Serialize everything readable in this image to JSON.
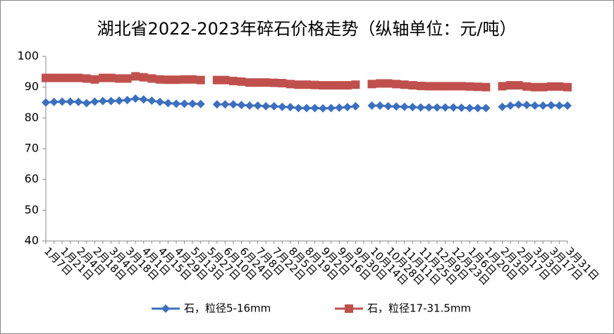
{
  "chart_data": {
    "type": "line",
    "title": "湖北省2022-2023年碎石价格走势（纵轴单位：元/吨）",
    "categories": [
      "1月7日",
      null,
      "1月21日",
      null,
      "2月4日",
      null,
      "2月18日",
      null,
      "3月4日",
      null,
      "3月18日",
      null,
      "4月1日",
      null,
      "4月15日",
      null,
      "4月29日",
      null,
      "5月13日",
      null,
      "5月27日",
      null,
      "6月10日",
      null,
      "6月24日",
      null,
      "7月8日",
      null,
      "7月22日",
      null,
      "8月5日",
      null,
      "8月19日",
      null,
      "9月2日",
      null,
      "9月16日",
      null,
      "9月30日",
      null,
      "10月14日",
      null,
      "10月28日",
      null,
      "11月11日",
      null,
      "11月25日",
      null,
      "12月9日",
      null,
      "12月23日",
      null,
      "1月6日",
      null,
      "1月20日",
      null,
      "2月3日",
      null,
      "2月17日",
      null,
      "3月3日",
      null,
      "3月17日",
      null,
      "3月31日"
    ],
    "series": [
      {
        "name": "石，粒径5-16mm",
        "color": "#3c6fbe",
        "marker": "diamond",
        "values": [
          85,
          85.2,
          85.3,
          85.3,
          85.2,
          84.8,
          85.3,
          85.5,
          85.5,
          85.6,
          85.8,
          86.3,
          86,
          85.6,
          85.2,
          84.8,
          84.6,
          84.6,
          84.6,
          84.5,
          null,
          84.4,
          84.4,
          84.4,
          84.2,
          84,
          84,
          83.8,
          83.8,
          83.6,
          83.5,
          83.2,
          83.2,
          83.2,
          83.1,
          83.2,
          83.3,
          83.5,
          83.8,
          null,
          84,
          84,
          83.8,
          83.7,
          83.6,
          83.5,
          83.4,
          83.4,
          83.4,
          83.4,
          83.4,
          83.3,
          83.2,
          83.2,
          83.2,
          null,
          83.6,
          84,
          84.3,
          84.2,
          84,
          84,
          84.1,
          84,
          84
        ]
      },
      {
        "name": "石，粒径17-31.5mm",
        "color": "#c0504d",
        "marker": "square",
        "values": [
          93,
          93,
          93,
          93,
          93,
          92.8,
          92.5,
          93,
          93,
          92.8,
          92.8,
          93.5,
          93.2,
          92.8,
          92.5,
          92.4,
          92.4,
          92.5,
          92.5,
          92.3,
          null,
          92.3,
          92.3,
          92,
          91.8,
          91.5,
          91.5,
          91.5,
          91.4,
          91.3,
          91,
          90.8,
          90.8,
          90.7,
          90.6,
          90.6,
          90.6,
          90.6,
          90.8,
          null,
          91,
          91.2,
          91.2,
          91,
          90.8,
          90.6,
          90.4,
          90.3,
          90.3,
          90.3,
          90.3,
          90.3,
          90.2,
          90.1,
          90,
          null,
          90.3,
          90.6,
          90.6,
          90.2,
          90,
          90,
          90.2,
          90.2,
          90
        ]
      }
    ],
    "ylim": [
      40,
      100
    ],
    "yticks": [
      40,
      50,
      60,
      70,
      80,
      90,
      100
    ],
    "grid": false,
    "legend": "bottom"
  }
}
